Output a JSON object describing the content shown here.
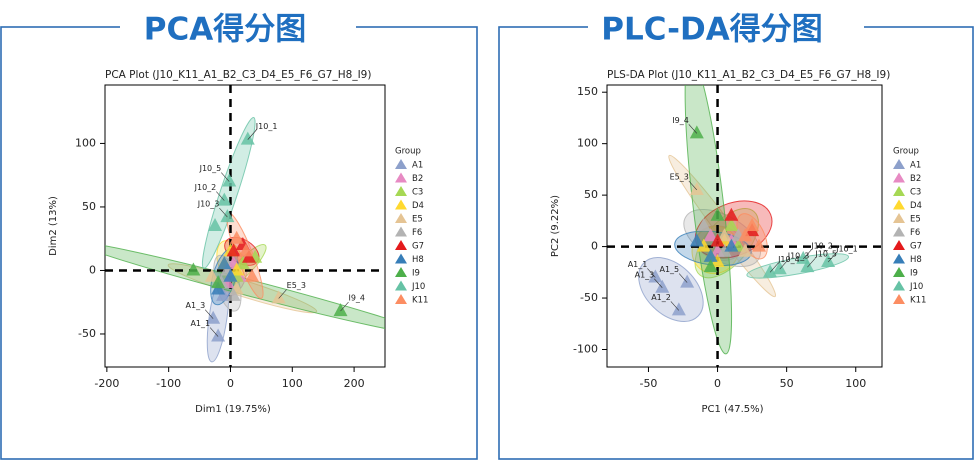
{
  "headings": [
    "PCA得分图",
    "PLC-DA得分图"
  ],
  "chart_data": [
    {
      "type": "scatter",
      "title": "PCA Plot (J10_K11_A1_B2_C3_D4_E5_F6_G7_H8_I9)",
      "xlabel": "Dim1 (19.75%)",
      "ylabel": "Dim2 (13%)",
      "xlim": [
        -203,
        250
      ],
      "ylim": [
        -76,
        146
      ],
      "xticks": [
        -200,
        -100,
        0,
        100,
        200
      ],
      "yticks": [
        -50,
        0,
        50,
        100
      ],
      "legend_title": "Group",
      "legend": "right",
      "ellipses": true,
      "series": [
        {
          "name": "A1",
          "color": "#8da0cb",
          "x": [
            -28,
            -20,
            -12
          ],
          "y": [
            -38,
            -52,
            -20
          ],
          "labels": [
            "A1_3",
            "A1_1",
            null
          ]
        },
        {
          "name": "B2",
          "color": "#e78ac3",
          "x": [
            -5,
            15,
            5
          ],
          "y": [
            -10,
            -5,
            5
          ],
          "labels": [
            null,
            null,
            null
          ]
        },
        {
          "name": "C3",
          "color": "#a6d854",
          "x": [
            20,
            40,
            10
          ],
          "y": [
            5,
            10,
            -5
          ],
          "labels": [
            null,
            null,
            null
          ]
        },
        {
          "name": "D4",
          "color": "#ffd92f",
          "x": [
            -10,
            10,
            0
          ],
          "y": [
            5,
            0,
            15
          ],
          "labels": [
            null,
            null,
            null
          ]
        },
        {
          "name": "E5",
          "color": "#e5c494",
          "x": [
            78,
            -30,
            10
          ],
          "y": [
            -22,
            -5,
            -15
          ],
          "labels": [
            "E5_3",
            null,
            null
          ]
        },
        {
          "name": "F6",
          "color": "#b3b3b3",
          "x": [
            -15,
            5,
            -5
          ],
          "y": [
            -10,
            -20,
            0
          ],
          "labels": [
            null,
            null,
            null
          ]
        },
        {
          "name": "G7",
          "color": "#e41a1c",
          "x": [
            20,
            30,
            5
          ],
          "y": [
            20,
            10,
            15
          ],
          "labels": [
            null,
            null,
            null
          ]
        },
        {
          "name": "H8",
          "color": "#377eb8",
          "x": [
            -20,
            0,
            -10
          ],
          "y": [
            -15,
            -5,
            5
          ],
          "labels": [
            null,
            null,
            null
          ]
        },
        {
          "name": "I9",
          "color": "#4daf4a",
          "x": [
            178,
            -20,
            -60
          ],
          "y": [
            -32,
            -10,
            0
          ],
          "labels": [
            "I9_4",
            null,
            null
          ]
        },
        {
          "name": "J10",
          "color": "#66c2a5",
          "x": [
            28,
            -2,
            -10,
            -5,
            -25
          ],
          "y": [
            103,
            70,
            55,
            42,
            35
          ],
          "labels": [
            "J10_1",
            "J10_5",
            "J10_2",
            "J10_3",
            null
          ]
        },
        {
          "name": "K11",
          "color": "#fc8d62",
          "x": [
            25,
            35,
            10
          ],
          "y": [
            15,
            -5,
            25
          ],
          "labels": [
            null,
            null,
            null
          ]
        }
      ]
    },
    {
      "type": "scatter",
      "title": "PLS-DA Plot (J10_K11_A1_B2_C3_D4_E5_F6_G7_H8_I9)",
      "xlabel": "PC1 (47.5%)",
      "ylabel": "PC2 (9.22%)",
      "xlim": [
        -80,
        119
      ],
      "ylim": [
        -117,
        157
      ],
      "xticks": [
        -50,
        0,
        50,
        100
      ],
      "yticks": [
        -100,
        -50,
        0,
        50,
        100,
        150
      ],
      "legend_title": "Group",
      "legend": "right",
      "ellipses": true,
      "series": [
        {
          "name": "A1",
          "color": "#8da0cb",
          "x": [
            -45,
            -40,
            -28,
            -22
          ],
          "y": [
            -30,
            -40,
            -62,
            -35
          ],
          "labels": [
            "A1_1",
            "A1_3",
            "A1_2",
            "A1_5"
          ]
        },
        {
          "name": "B2",
          "color": "#e78ac3",
          "x": [
            0,
            10,
            -5
          ],
          "y": [
            -5,
            5,
            10
          ],
          "labels": [
            null,
            null,
            null
          ]
        },
        {
          "name": "C3",
          "color": "#a6d854",
          "x": [
            10,
            -5,
            15
          ],
          "y": [
            20,
            -10,
            0
          ],
          "labels": [
            null,
            null,
            null
          ]
        },
        {
          "name": "D4",
          "color": "#ffd92f",
          "x": [
            -10,
            5,
            0
          ],
          "y": [
            0,
            5,
            -15
          ],
          "labels": [
            null,
            null,
            null
          ]
        },
        {
          "name": "E5",
          "color": "#e5c494",
          "x": [
            -15,
            5,
            20
          ],
          "y": [
            55,
            10,
            -5
          ],
          "labels": [
            "E5_3",
            null,
            null
          ]
        },
        {
          "name": "F6",
          "color": "#b3b3b3",
          "x": [
            -10,
            5,
            15
          ],
          "y": [
            20,
            -5,
            10
          ],
          "labels": [
            null,
            null,
            null
          ]
        },
        {
          "name": "G7",
          "color": "#e41a1c",
          "x": [
            10,
            25,
            0
          ],
          "y": [
            30,
            15,
            5
          ],
          "labels": [
            null,
            null,
            null
          ]
        },
        {
          "name": "H8",
          "color": "#377eb8",
          "x": [
            -5,
            10,
            -15
          ],
          "y": [
            -10,
            0,
            5
          ],
          "labels": [
            null,
            null,
            null
          ]
        },
        {
          "name": "I9",
          "color": "#4daf4a",
          "x": [
            -15,
            -5,
            0
          ],
          "y": [
            110,
            -20,
            30
          ],
          "labels": [
            "I9_4",
            null,
            null
          ]
        },
        {
          "name": "J10",
          "color": "#66c2a5",
          "x": [
            80,
            62,
            45,
            38,
            65
          ],
          "y": [
            -15,
            -12,
            -22,
            -25,
            -20
          ],
          "labels": [
            "J10_1",
            "J10_2",
            "J10_3",
            "J10_4",
            "J10_5"
          ]
        },
        {
          "name": "K11",
          "color": "#fc8d62",
          "x": [
            20,
            30,
            25
          ],
          "y": [
            10,
            0,
            20
          ],
          "labels": [
            null,
            null,
            null
          ]
        }
      ]
    }
  ]
}
